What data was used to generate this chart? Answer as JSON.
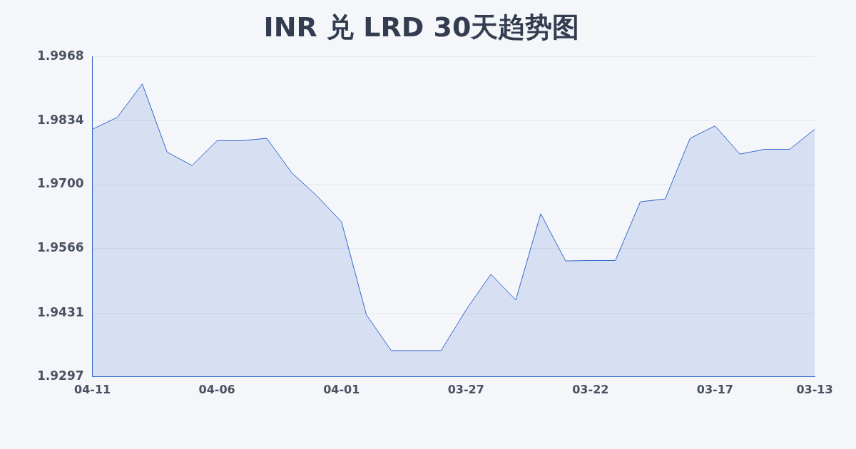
{
  "chart_data": {
    "type": "area",
    "title": "INR 兑 LRD 30天趋势图",
    "categories": [
      "04-11",
      null,
      null,
      null,
      null,
      "04-06",
      null,
      null,
      null,
      null,
      "04-01",
      null,
      null,
      null,
      null,
      "03-27",
      null,
      null,
      null,
      null,
      "03-22",
      null,
      null,
      null,
      null,
      "03-17",
      null,
      null,
      null,
      "03-13"
    ],
    "series": [
      {
        "color": "#3366cc",
        "values": [
          1.9816,
          1.9841,
          1.9911,
          1.9768,
          1.974,
          1.9792,
          1.9792,
          1.9797,
          1.9725,
          1.9677,
          1.9622,
          1.9427,
          1.9352,
          1.9352,
          1.9352,
          1.9437,
          1.9512,
          1.9458,
          1.9639,
          1.954,
          1.9541,
          1.9541,
          1.9664,
          1.967,
          1.9797,
          1.9823,
          1.9764,
          1.9774,
          1.9774,
          1.9816
        ]
      }
    ],
    "ylim": [
      1.9297,
      1.9968
    ],
    "yticks": [
      1.9297,
      1.9431,
      1.9566,
      {
        "value": 1.97,
        "label": "1.9700"
      },
      1.9834,
      1.9968
    ],
    "grid": "y",
    "legend": false
  }
}
